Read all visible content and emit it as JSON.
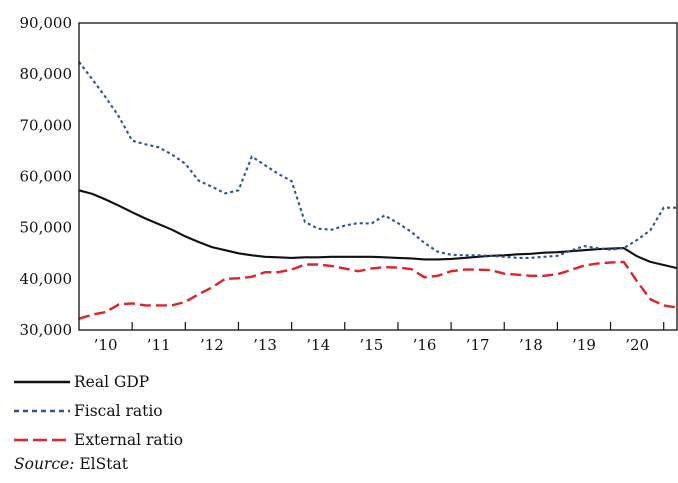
{
  "chart_data": {
    "type": "line",
    "title": "",
    "xlabel": "",
    "ylabel": "",
    "ylim": [
      30000,
      90000
    ],
    "yticks": [
      30000,
      40000,
      50000,
      60000,
      70000,
      80000,
      90000
    ],
    "ytick_labels": [
      "30,000",
      "40,000",
      "50,000",
      "60,000",
      "70,000",
      "80,000",
      "90,000"
    ],
    "xlim": [
      2009.5,
      2020.75
    ],
    "xticks": [
      2010,
      2011,
      2012,
      2013,
      2014,
      2015,
      2016,
      2017,
      2018,
      2019,
      2020
    ],
    "xtick_labels": [
      "’10",
      "’11",
      "’12",
      "’13",
      "’14",
      "’15",
      "’16",
      "’17",
      "’18",
      "’19",
      "’20"
    ],
    "grid": false,
    "legend_position": "bottom",
    "x": [
      2009.5,
      2009.75,
      2010.0,
      2010.25,
      2010.5,
      2010.75,
      2011.0,
      2011.25,
      2011.5,
      2011.75,
      2012.0,
      2012.25,
      2012.5,
      2012.75,
      2013.0,
      2013.25,
      2013.5,
      2013.75,
      2014.0,
      2014.25,
      2014.5,
      2014.75,
      2015.0,
      2015.25,
      2015.5,
      2015.75,
      2016.0,
      2016.25,
      2016.5,
      2016.75,
      2017.0,
      2017.25,
      2017.5,
      2017.75,
      2018.0,
      2018.25,
      2018.5,
      2018.75,
      2019.0,
      2019.25,
      2019.5,
      2019.75,
      2020.0,
      2020.25,
      2020.5,
      2020.75
    ],
    "series": [
      {
        "name": "Real GDP",
        "color": "#111111",
        "dash": "solid",
        "values": [
          57300,
          56600,
          55500,
          54300,
          53000,
          51800,
          50700,
          49600,
          48300,
          47200,
          46200,
          45600,
          45000,
          44600,
          44300,
          44200,
          44100,
          44200,
          44200,
          44300,
          44300,
          44300,
          44300,
          44200,
          44100,
          44000,
          43800,
          43800,
          43900,
          44100,
          44300,
          44500,
          44600,
          44800,
          44900,
          45100,
          45200,
          45400,
          45600,
          45800,
          45900,
          46000,
          44400,
          43300,
          42700,
          42100
        ]
      },
      {
        "name": "Fiscal ratio",
        "color": "#2f4fa0",
        "dash": "dotted",
        "values": [
          82400,
          79000,
          75500,
          71700,
          67000,
          66300,
          65700,
          64300,
          62500,
          59200,
          58000,
          56700,
          57300,
          63900,
          62200,
          60500,
          59100,
          51100,
          49800,
          49600,
          50400,
          50900,
          50800,
          52400,
          50900,
          49200,
          47000,
          45300,
          44700,
          44600,
          44600,
          44500,
          44300,
          44100,
          44100,
          44300,
          44500,
          45500,
          46400,
          46000,
          45700,
          46000,
          47600,
          49500,
          53900,
          53900
        ]
      },
      {
        "name": "External ratio",
        "color": "#e0222a",
        "dash": "dashed",
        "values": [
          32200,
          33000,
          33500,
          35000,
          35200,
          34800,
          34800,
          34800,
          35500,
          37000,
          38300,
          40000,
          40100,
          40400,
          41300,
          41300,
          41800,
          42800,
          42800,
          42500,
          42000,
          41500,
          42000,
          42300,
          42200,
          41900,
          40300,
          40600,
          41500,
          41800,
          41800,
          41700,
          41000,
          40800,
          40600,
          40600,
          40900,
          41700,
          42600,
          43000,
          43200,
          43300,
          39500,
          36000,
          34800,
          34400
        ]
      }
    ]
  },
  "legend": {
    "items": [
      {
        "label": "Real GDP",
        "color": "#111111",
        "dash": "solid"
      },
      {
        "label": "Fiscal ratio",
        "color": "#2f4fa0",
        "dash": "dotted"
      },
      {
        "label": "External ratio",
        "color": "#e0222a",
        "dash": "dashed"
      }
    ]
  },
  "source": {
    "prefix": "Source:",
    "text": " ElStat"
  }
}
